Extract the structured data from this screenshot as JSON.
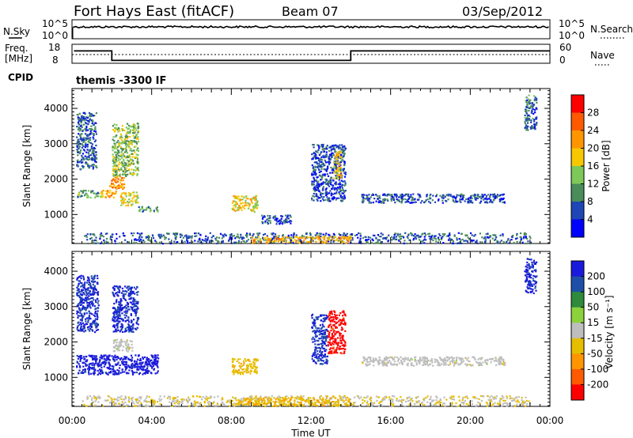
{
  "header": {
    "title": "Fort Hays East (fitACF)",
    "beam": "Beam 07",
    "date": "03/Sep/2012"
  },
  "top_panel": {
    "left_label": "N.Sky",
    "left_ticks": [
      "10^5",
      "10^0"
    ],
    "right_label": "N.Search",
    "right_ticks": [
      "10^5",
      "10^0"
    ]
  },
  "freq_panel": {
    "left_label_1": "Freq.",
    "left_label_2": "[MHz]",
    "left_ticks": [
      "18",
      "8"
    ],
    "right_label": "Nave",
    "right_ticks": [
      "60",
      "0"
    ],
    "cpid_label": "CPID",
    "cpid_value": "themis -3300 IF"
  },
  "axes": {
    "x_ticks": [
      "00:00",
      "04:00",
      "08:00",
      "12:00",
      "16:00",
      "20:00",
      "00:00"
    ],
    "x_label": "Time UT",
    "y_label": "Slant Range [km]",
    "y_ticks": [
      "4000",
      "3000",
      "2000",
      "1000"
    ]
  },
  "power_colorbar": {
    "label": "Power [dB]",
    "ticks": [
      "28",
      "24",
      "20",
      "16",
      "12",
      "8",
      "4"
    ],
    "colors": [
      "#ff0000",
      "#ff5a00",
      "#ff9600",
      "#f7c800",
      "#7ec85a",
      "#4a8c5a",
      "#1e46b4",
      "#0000ff"
    ]
  },
  "velocity_colorbar": {
    "label": "Velocity [m s⁻¹]",
    "ticks": [
      "200",
      "100",
      "50",
      "15",
      "-15",
      "-50",
      "-100",
      "-200"
    ],
    "colors": [
      "#1a1adc",
      "#1e4fa8",
      "#2f8a3c",
      "#8cd23c",
      "#bebebe",
      "#e6be00",
      "#ff9600",
      "#ff5a00",
      "#ff0000"
    ]
  },
  "chart_data": {
    "type": "heatmap",
    "title": "Fort Hays East (fitACF)",
    "xlabel": "Time UT",
    "ylabel": "Slant Range [km]",
    "xlim": [
      0,
      24
    ],
    "ylim": [
      180,
      4560
    ],
    "time_ticks_hours": [
      0,
      4,
      8,
      12,
      16,
      20,
      24
    ],
    "range_ticks_km": [
      1000,
      2000,
      3000,
      4000
    ],
    "frequency_mhz": [
      {
        "start_h": 0.1,
        "end_h": 2.0,
        "value": 14.5
      },
      {
        "start_h": 2.0,
        "end_h": 14.0,
        "value": 9.5
      },
      {
        "start_h": 14.0,
        "end_h": 24.0,
        "value": 14.5
      }
    ],
    "power_panel": {
      "colorbar_label": "Power [dB]",
      "colorbar_range": [
        0,
        32
      ],
      "regions": [
        {
          "t0": 0.2,
          "t1": 1.3,
          "r0": 1500,
          "r1": 1700,
          "value": 12
        },
        {
          "t0": 1.4,
          "t1": 2.2,
          "r0": 1500,
          "r1": 1700,
          "value": 20
        },
        {
          "t0": 1.8,
          "t1": 2.6,
          "r0": 1750,
          "r1": 2100,
          "value": 22
        },
        {
          "t0": 2.4,
          "t1": 3.3,
          "r0": 1250,
          "r1": 1650,
          "value": 17
        },
        {
          "t0": 3.3,
          "t1": 4.3,
          "r0": 1100,
          "r1": 1250,
          "value": 11
        },
        {
          "t0": 0.2,
          "t1": 1.2,
          "r0": 2300,
          "r1": 3900,
          "value": 7
        },
        {
          "t0": 2.0,
          "t1": 3.3,
          "r0": 2100,
          "r1": 3600,
          "value": 13
        },
        {
          "t0": 8.0,
          "t1": 9.3,
          "r0": 1100,
          "r1": 1550,
          "value": 18
        },
        {
          "t0": 12.0,
          "t1": 13.7,
          "r0": 1400,
          "r1": 3000,
          "value": 6
        },
        {
          "t0": 13.1,
          "t1": 13.5,
          "r0": 2000,
          "r1": 2800,
          "value": 19
        },
        {
          "t0": 14.5,
          "t1": 21.7,
          "r0": 1350,
          "r1": 1600,
          "value": 6
        },
        {
          "t0": 22.7,
          "t1": 23.3,
          "r0": 3400,
          "r1": 4400,
          "value": 8
        },
        {
          "t0": 0.5,
          "t1": 23.0,
          "r0": 200,
          "r1": 500,
          "value": 7
        },
        {
          "t0": 9.0,
          "t1": 14.0,
          "r0": 220,
          "r1": 400,
          "value": 20
        },
        {
          "t0": 9.5,
          "t1": 11.0,
          "r0": 750,
          "r1": 1000,
          "value": 6
        }
      ]
    },
    "velocity_panel": {
      "colorbar_label": "Velocity [m s⁻¹]",
      "colorbar_range": [
        -250,
        250
      ],
      "regions": [
        {
          "t0": 0.2,
          "t1": 4.3,
          "r0": 1100,
          "r1": 1650,
          "value": 220
        },
        {
          "t0": 0.2,
          "t1": 1.3,
          "r0": 2300,
          "r1": 3900,
          "value": 200
        },
        {
          "t0": 2.0,
          "t1": 3.3,
          "r0": 2300,
          "r1": 3600,
          "value": 200
        },
        {
          "t0": 2.0,
          "t1": 3.0,
          "r0": 1750,
          "r1": 2100,
          "value": 0
        },
        {
          "t0": 8.0,
          "t1": 9.3,
          "r0": 1100,
          "r1": 1550,
          "value": -60
        },
        {
          "t0": 12.0,
          "t1": 12.8,
          "r0": 1400,
          "r1": 2800,
          "value": 200
        },
        {
          "t0": 12.8,
          "t1": 13.7,
          "r0": 1700,
          "r1": 2900,
          "value": -220
        },
        {
          "t0": 14.5,
          "t1": 21.7,
          "r0": 1350,
          "r1": 1600,
          "value": 0
        },
        {
          "t0": 22.7,
          "t1": 23.3,
          "r0": 3400,
          "r1": 4400,
          "value": 210
        },
        {
          "t0": 0.5,
          "t1": 23.0,
          "r0": 200,
          "r1": 500,
          "value": -20
        },
        {
          "t0": 8.0,
          "t1": 14.0,
          "r0": 220,
          "r1": 450,
          "value": -70
        }
      ]
    }
  }
}
